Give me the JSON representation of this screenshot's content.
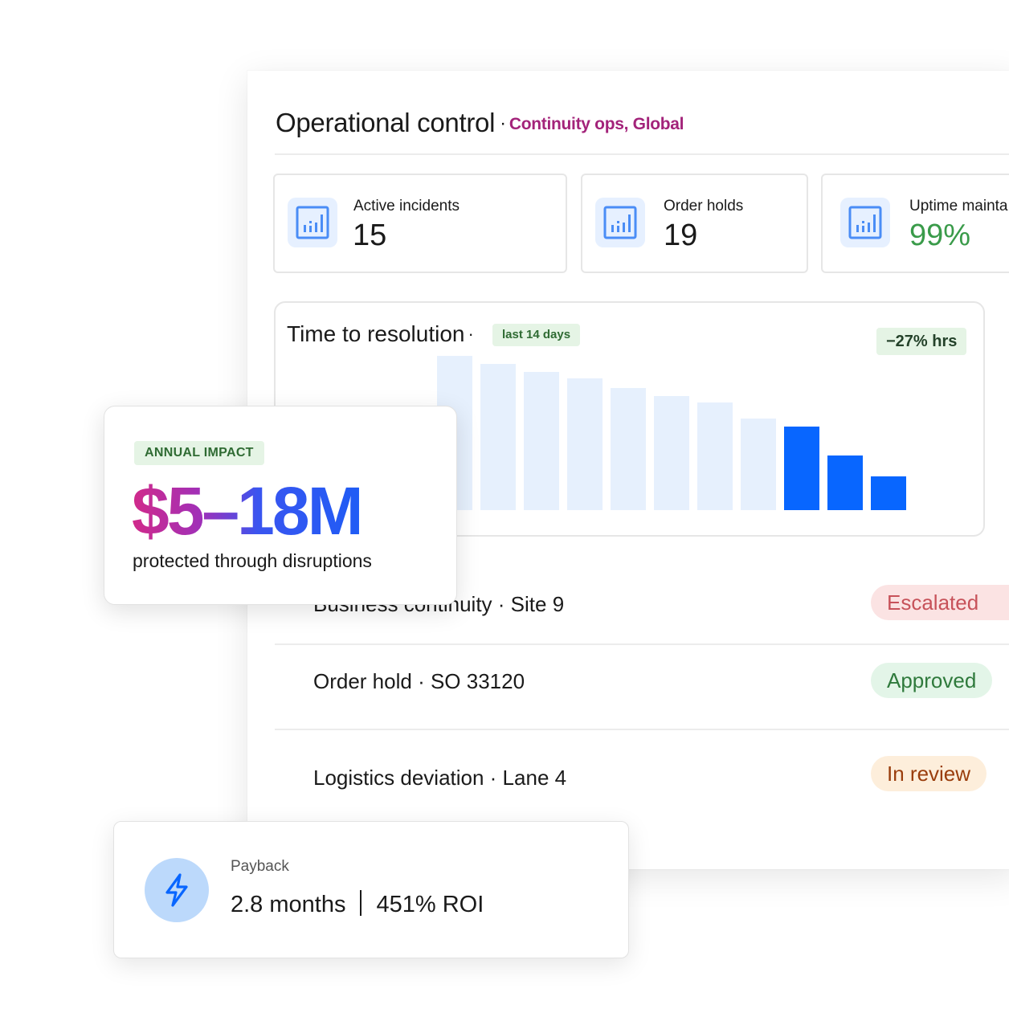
{
  "header": {
    "title": "Operational control",
    "separator": "·",
    "subtitle": "Continuity ops, Global"
  },
  "kpis": [
    {
      "label": "Active incidents",
      "value": "15",
      "icon": "bar-chart-icon"
    },
    {
      "label": "Order holds",
      "value": "19",
      "icon": "bar-chart-icon"
    },
    {
      "label": "Uptime mainta",
      "value": "99%",
      "icon": "bar-chart-icon"
    }
  ],
  "chart": {
    "title": "Time to resolution",
    "separator": "·",
    "range_chip": "last 14 days",
    "delta_chip": "−27% hrs"
  },
  "chart_data": {
    "type": "bar",
    "title": "Time to resolution",
    "categories": [
      "1",
      "2",
      "3",
      "4",
      "5",
      "6",
      "7",
      "8",
      "9",
      "10",
      "11"
    ],
    "values": [
      96,
      91,
      86,
      82,
      76,
      71,
      67,
      57,
      52,
      34,
      21
    ],
    "highlighted_from_index": 8,
    "colors": {
      "muted": "#e6f0fd",
      "highlight": "#0866ff"
    }
  },
  "rows": [
    {
      "text": "Business continuity · Site 9",
      "status": "Escalated",
      "tone": "red"
    },
    {
      "text": "Order hold · SO 33120",
      "status": "Approved",
      "tone": "green"
    },
    {
      "text": "Logistics deviation · Lane 4",
      "status": "In review",
      "tone": "amber"
    }
  ],
  "impact": {
    "chip": "ANNUAL IMPACT",
    "value": "$5–18M",
    "caption": "protected through disruptions"
  },
  "payback": {
    "label": "Payback",
    "months": "2.8 months",
    "roi": "451% ROI",
    "icon": "lightning-bolt-icon"
  },
  "colors": {
    "accent": "#0866ff",
    "subtitle": "#a3237a",
    "success": "#3a9b4a"
  }
}
